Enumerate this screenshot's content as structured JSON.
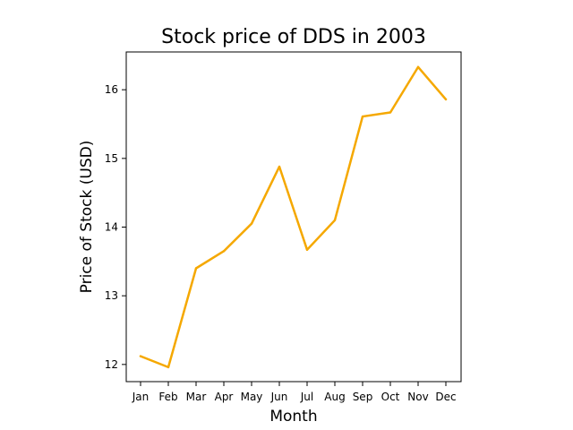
{
  "chart_data": {
    "type": "line",
    "title": "Stock price of DDS in 2003",
    "xlabel": "Month",
    "ylabel": "Price of Stock (USD)",
    "categories": [
      "Jan",
      "Feb",
      "Mar",
      "Apr",
      "May",
      "Jun",
      "Jul",
      "Aug",
      "Sep",
      "Oct",
      "Nov",
      "Dec"
    ],
    "series": [
      {
        "values": [
          12.12,
          11.96,
          13.4,
          13.65,
          14.05,
          14.88,
          13.67,
          14.1,
          15.61,
          15.67,
          16.33,
          15.86
        ],
        "color": "#f5a800"
      }
    ],
    "ylim": [
      11.75,
      16.55
    ],
    "yticks": [
      12,
      13,
      14,
      15,
      16
    ],
    "grid": false,
    "legend": false
  }
}
